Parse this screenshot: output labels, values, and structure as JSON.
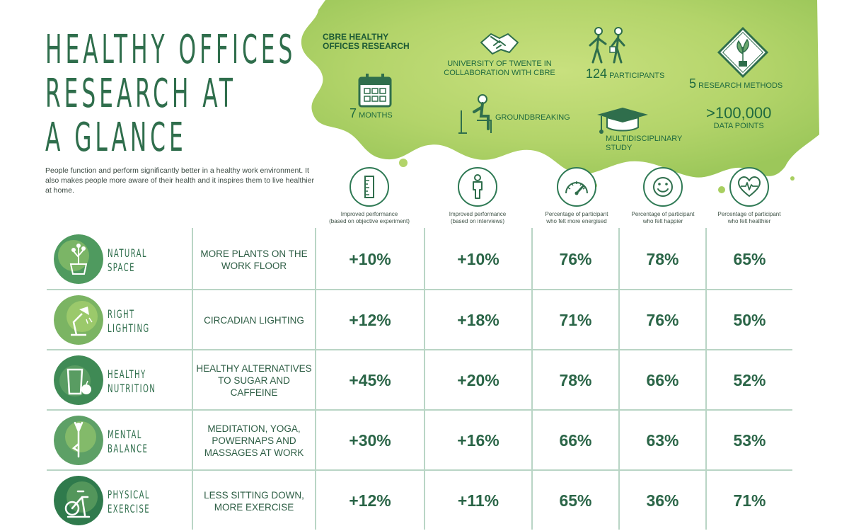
{
  "title_lines": [
    "HEALTHY OFFICES",
    "RESEARCH AT",
    "A GLANCE"
  ],
  "intro": "People function and perform significantly better in a healthy work environment. It also makes people more aware of their health and it inspires them to live healthier at home.",
  "research": {
    "label_line1": "CBRE HEALTHY",
    "label_line2": "OFFICES RESEARCH",
    "university_line1": "UNIVERSITY OF TWENTE IN",
    "university_line2": "COLLABORATION WITH CBRE",
    "participants_num": "124",
    "participants_label": "PARTICIPANTS",
    "methods_num": "5",
    "methods_label": "RESEARCH METHODS",
    "months_num": "7",
    "months_label": "MONTHS",
    "groundbreaking": "GROUNDBREAKING",
    "multidisciplinary_line1": "MULTIDISCIPLINARY",
    "multidisciplinary_line2": "STUDY",
    "datapoints_num": ">100,000",
    "datapoints_label": "DATA POINTS"
  },
  "columns": [
    {
      "line1": "Improved performance",
      "line2": "(based on objective experiment)",
      "icon": "ruler-icon"
    },
    {
      "line1": "Improved performance",
      "line2": "(based on interviews)",
      "icon": "person-icon"
    },
    {
      "line1": "Percentage of participant",
      "line2": "who felt more energised",
      "icon": "gauge-icon"
    },
    {
      "line1": "Percentage of participant",
      "line2": "who felt happier",
      "icon": "smiley-icon"
    },
    {
      "line1": "Percentage of participant",
      "line2": "who felt healthier",
      "icon": "heart-pulse-icon"
    }
  ],
  "rows": [
    {
      "cat1": "NATURAL",
      "cat2": "SPACE",
      "desc": "MORE PLANTS ON THE WORK FLOOR",
      "icon": "plant-pot-icon",
      "v1": "+10%",
      "v2": "+10%",
      "v3": "76%",
      "v4": "78%",
      "v5": "65%"
    },
    {
      "cat1": "RIGHT",
      "cat2": "LIGHTING",
      "desc": "CIRCADIAN LIGHTING",
      "icon": "desk-lamp-icon",
      "v1": "+12%",
      "v2": "+18%",
      "v3": "71%",
      "v4": "76%",
      "v5": "50%"
    },
    {
      "cat1": "HEALTHY",
      "cat2": "NUTRITION",
      "desc": "HEALTHY ALTERNATIVES TO SUGAR AND CAFFEINE",
      "icon": "glass-apple-icon",
      "v1": "+45%",
      "v2": "+20%",
      "v3": "78%",
      "v4": "66%",
      "v5": "52%"
    },
    {
      "cat1": "MENTAL",
      "cat2": "BALANCE",
      "desc": "MEDITATION, YOGA, POWERNAPS AND MASSAGES AT WORK",
      "icon": "yoga-pose-icon",
      "v1": "+30%",
      "v2": "+16%",
      "v3": "66%",
      "v4": "63%",
      "v5": "53%"
    },
    {
      "cat1": "PHYSICAL",
      "cat2": "EXERCISE",
      "desc": "LESS SITTING DOWN, MORE EXERCISE",
      "icon": "exercise-bike-icon",
      "v1": "+12%",
      "v2": "+11%",
      "v3": "65%",
      "v4": "36%",
      "v5": "71%"
    }
  ],
  "colors": {
    "dark_green": "#2f6e4c",
    "lime": "#b7d86a",
    "grid": "#b9d5c5"
  }
}
